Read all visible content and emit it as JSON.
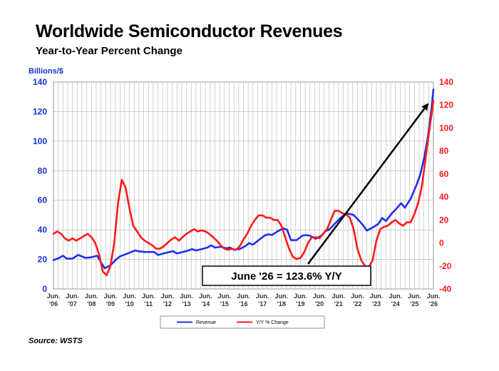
{
  "header": {
    "title": "Worldwide Semiconductor Revenues",
    "subtitle": "Year-to-Year Percent Change",
    "unit_left": "Billions/$"
  },
  "footer": {
    "source": "Source: WSTS"
  },
  "colors": {
    "revenue": "#1e2ff0",
    "yoy": "#ff1a1a",
    "grid": "#b4b4b4",
    "left_axis_text": "#1530d6",
    "right_axis_text": "#ff1a1a"
  },
  "chart_data": {
    "type": "line",
    "title": "Worldwide Semiconductor Revenues",
    "subtitle": "Year-to-Year Percent Change",
    "ylabel_left": "Billions/$",
    "ylim_left": [
      0,
      140
    ],
    "yticks_left": [
      "0",
      "20",
      "40",
      "60",
      "80",
      "100",
      "120",
      "140"
    ],
    "ylim_right": [
      -40,
      140
    ],
    "yticks_right": [
      "-40",
      "-20",
      "0",
      "20",
      "40",
      "60",
      "80",
      "100",
      "120",
      "140"
    ],
    "x_start": 2006.5,
    "x_end": 2026.5,
    "x_tick_labels": [
      [
        "Jun.",
        "'06"
      ],
      [
        "Jun.",
        "'07"
      ],
      [
        "Jun.",
        "'08"
      ],
      [
        "Jun.",
        "'09"
      ],
      [
        "Jun.",
        "'10"
      ],
      [
        "Jun.",
        "'11"
      ],
      [
        "Jun.",
        "'12"
      ],
      [
        "Jun.",
        "'13"
      ],
      [
        "Jun.",
        "'14"
      ],
      [
        "Jun.",
        "'15"
      ],
      [
        "Jun.",
        "'16"
      ],
      [
        "Jun.",
        "'17"
      ],
      [
        "Jun.",
        "'18"
      ],
      [
        "Jun.",
        "'19"
      ],
      [
        "Jun.",
        "'20"
      ],
      [
        "Jun.",
        "'21"
      ],
      [
        "Jun.",
        "'22"
      ],
      [
        "Jun.",
        "'23"
      ],
      [
        "Jun.",
        "'24"
      ],
      [
        "Jun.",
        "'25"
      ],
      [
        "Jun.",
        "'26"
      ]
    ],
    "grid": true,
    "legend_position": "bottom-center",
    "annotation": "June '26 = 123.6% Y/Y",
    "series": [
      {
        "name": "Revenue",
        "axis": "left",
        "points": [
          [
            2006.5,
            19.5
          ],
          [
            2006.8,
            21
          ],
          [
            2007.0,
            22.5
          ],
          [
            2007.2,
            20.5
          ],
          [
            2007.5,
            20.5
          ],
          [
            2007.8,
            23
          ],
          [
            2008.0,
            22
          ],
          [
            2008.2,
            21
          ],
          [
            2008.5,
            21.5
          ],
          [
            2008.8,
            22.5
          ],
          [
            2009.0,
            18
          ],
          [
            2009.2,
            14
          ],
          [
            2009.5,
            16
          ],
          [
            2009.8,
            20
          ],
          [
            2010.0,
            22
          ],
          [
            2010.3,
            23.5
          ],
          [
            2010.6,
            25
          ],
          [
            2010.8,
            26
          ],
          [
            2011.0,
            25.5
          ],
          [
            2011.3,
            25
          ],
          [
            2011.6,
            25
          ],
          [
            2011.8,
            25
          ],
          [
            2012.0,
            23
          ],
          [
            2012.3,
            24
          ],
          [
            2012.6,
            25
          ],
          [
            2012.8,
            25.5
          ],
          [
            2013.0,
            24
          ],
          [
            2013.3,
            25
          ],
          [
            2013.6,
            26
          ],
          [
            2013.8,
            27
          ],
          [
            2014.0,
            26
          ],
          [
            2014.3,
            27
          ],
          [
            2014.6,
            28
          ],
          [
            2014.8,
            29.5
          ],
          [
            2015.0,
            28
          ],
          [
            2015.3,
            28.5
          ],
          [
            2015.6,
            27.5
          ],
          [
            2015.8,
            28
          ],
          [
            2016.0,
            26.5
          ],
          [
            2016.3,
            27
          ],
          [
            2016.6,
            29
          ],
          [
            2016.8,
            31
          ],
          [
            2017.0,
            30
          ],
          [
            2017.3,
            33
          ],
          [
            2017.6,
            36
          ],
          [
            2017.8,
            37
          ],
          [
            2018.0,
            36.5
          ],
          [
            2018.3,
            39
          ],
          [
            2018.6,
            41
          ],
          [
            2018.8,
            40
          ],
          [
            2019.0,
            33
          ],
          [
            2019.3,
            33
          ],
          [
            2019.6,
            36
          ],
          [
            2019.8,
            36.5
          ],
          [
            2020.0,
            36
          ],
          [
            2020.3,
            34
          ],
          [
            2020.6,
            36
          ],
          [
            2020.8,
            39
          ],
          [
            2021.0,
            40
          ],
          [
            2021.3,
            44
          ],
          [
            2021.6,
            48
          ],
          [
            2021.8,
            50
          ],
          [
            2022.0,
            51
          ],
          [
            2022.3,
            50
          ],
          [
            2022.6,
            46
          ],
          [
            2022.8,
            43
          ],
          [
            2023.0,
            39.5
          ],
          [
            2023.3,
            41.5
          ],
          [
            2023.6,
            44
          ],
          [
            2023.8,
            48
          ],
          [
            2024.0,
            46
          ],
          [
            2024.3,
            51
          ],
          [
            2024.6,
            55
          ],
          [
            2024.8,
            58
          ],
          [
            2025.0,
            55
          ],
          [
            2025.3,
            61
          ],
          [
            2025.6,
            70
          ],
          [
            2025.8,
            77
          ],
          [
            2026.0,
            88
          ],
          [
            2026.2,
            102
          ],
          [
            2026.4,
            122
          ],
          [
            2026.5,
            135
          ]
        ]
      },
      {
        "name": "Y/Y % Change",
        "axis": "right",
        "points": [
          [
            2006.5,
            8
          ],
          [
            2006.7,
            10
          ],
          [
            2006.9,
            8
          ],
          [
            2007.1,
            4
          ],
          [
            2007.3,
            2
          ],
          [
            2007.5,
            4
          ],
          [
            2007.7,
            2
          ],
          [
            2007.9,
            4
          ],
          [
            2008.1,
            6
          ],
          [
            2008.3,
            8
          ],
          [
            2008.5,
            5
          ],
          [
            2008.7,
            0
          ],
          [
            2008.9,
            -10
          ],
          [
            2009.1,
            -25
          ],
          [
            2009.3,
            -28
          ],
          [
            2009.5,
            -20
          ],
          [
            2009.7,
            0
          ],
          [
            2009.9,
            35
          ],
          [
            2010.1,
            55
          ],
          [
            2010.3,
            48
          ],
          [
            2010.5,
            30
          ],
          [
            2010.7,
            15
          ],
          [
            2010.9,
            10
          ],
          [
            2011.1,
            5
          ],
          [
            2011.3,
            2
          ],
          [
            2011.5,
            0
          ],
          [
            2011.7,
            -2
          ],
          [
            2011.9,
            -5
          ],
          [
            2012.1,
            -5
          ],
          [
            2012.3,
            -3
          ],
          [
            2012.5,
            0
          ],
          [
            2012.7,
            3
          ],
          [
            2012.9,
            5
          ],
          [
            2013.1,
            2
          ],
          [
            2013.3,
            5
          ],
          [
            2013.5,
            8
          ],
          [
            2013.7,
            10
          ],
          [
            2013.9,
            12
          ],
          [
            2014.1,
            10
          ],
          [
            2014.3,
            11
          ],
          [
            2014.5,
            10
          ],
          [
            2014.7,
            8
          ],
          [
            2014.9,
            5
          ],
          [
            2015.1,
            2
          ],
          [
            2015.3,
            -2
          ],
          [
            2015.5,
            -5
          ],
          [
            2015.7,
            -6
          ],
          [
            2015.9,
            -5
          ],
          [
            2016.1,
            -6
          ],
          [
            2016.3,
            -3
          ],
          [
            2016.5,
            3
          ],
          [
            2016.7,
            8
          ],
          [
            2016.9,
            15
          ],
          [
            2017.1,
            20
          ],
          [
            2017.3,
            24
          ],
          [
            2017.5,
            24
          ],
          [
            2017.7,
            22
          ],
          [
            2017.9,
            22
          ],
          [
            2018.1,
            20
          ],
          [
            2018.3,
            20
          ],
          [
            2018.5,
            15
          ],
          [
            2018.7,
            5
          ],
          [
            2018.9,
            -5
          ],
          [
            2019.1,
            -12
          ],
          [
            2019.3,
            -14
          ],
          [
            2019.5,
            -13
          ],
          [
            2019.7,
            -8
          ],
          [
            2019.9,
            0
          ],
          [
            2020.1,
            5
          ],
          [
            2020.3,
            5
          ],
          [
            2020.5,
            4
          ],
          [
            2020.7,
            8
          ],
          [
            2020.9,
            12
          ],
          [
            2021.1,
            20
          ],
          [
            2021.3,
            28
          ],
          [
            2021.5,
            28
          ],
          [
            2021.7,
            26
          ],
          [
            2021.9,
            25
          ],
          [
            2022.1,
            22
          ],
          [
            2022.3,
            12
          ],
          [
            2022.5,
            -5
          ],
          [
            2022.7,
            -15
          ],
          [
            2022.9,
            -20
          ],
          [
            2023.1,
            -21
          ],
          [
            2023.3,
            -15
          ],
          [
            2023.5,
            2
          ],
          [
            2023.7,
            12
          ],
          [
            2023.9,
            14
          ],
          [
            2024.1,
            15
          ],
          [
            2024.3,
            18
          ],
          [
            2024.5,
            20
          ],
          [
            2024.7,
            17
          ],
          [
            2024.9,
            15
          ],
          [
            2025.1,
            18
          ],
          [
            2025.3,
            18
          ],
          [
            2025.5,
            25
          ],
          [
            2025.7,
            35
          ],
          [
            2025.9,
            50
          ],
          [
            2026.1,
            75
          ],
          [
            2026.3,
            100
          ],
          [
            2026.5,
            123.6
          ]
        ]
      }
    ]
  }
}
